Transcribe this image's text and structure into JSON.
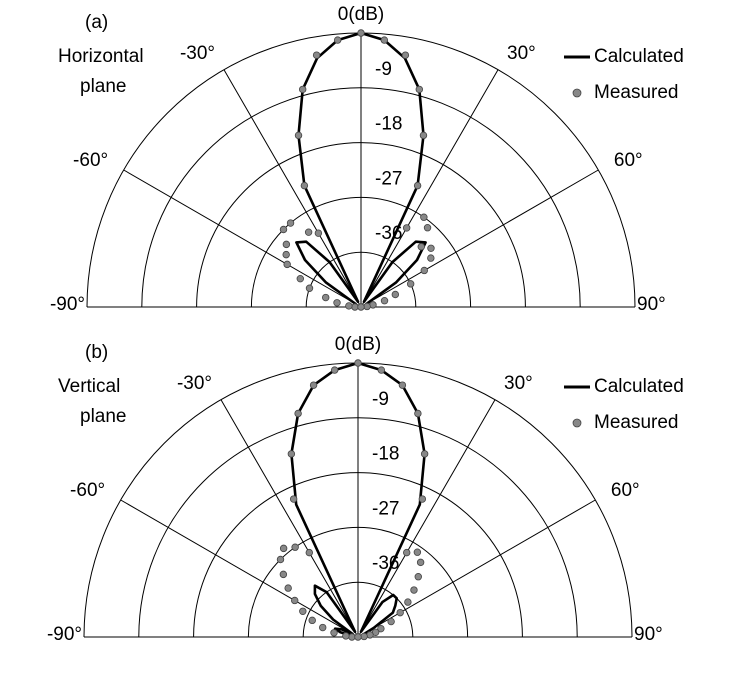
{
  "chart_data": [
    {
      "type": "polar",
      "panel_label": "(a)",
      "subtitle_lines": [
        "Horizontal",
        "plane"
      ],
      "x": [
        -90,
        -85,
        -80,
        -75,
        -70,
        -65,
        -60,
        -55,
        -50,
        -45,
        -40,
        -35,
        -30,
        -25,
        -20,
        -15,
        -10,
        -5,
        0,
        5,
        10,
        15,
        20,
        25,
        30,
        35,
        40,
        45,
        50,
        55,
        60,
        65,
        70,
        75,
        80,
        85,
        90
      ],
      "xticks": [
        {
          "value": -90,
          "label": "-90°"
        },
        {
          "value": -60,
          "label": "-60°"
        },
        {
          "value": -30,
          "label": "-30°"
        },
        {
          "value": 30,
          "label": "30°"
        },
        {
          "value": 60,
          "label": "60°"
        },
        {
          "value": 90,
          "label": "90°"
        }
      ],
      "rlim": [
        -45,
        0
      ],
      "rticks": [
        {
          "value": 0,
          "label": "0(dB)"
        },
        -9,
        -18,
        -27,
        -36
      ],
      "legend": "upper right",
      "series": [
        {
          "name": "Calculated",
          "color": "#000000",
          "style": "line",
          "values": [
            -45,
            -45,
            -45,
            -45,
            -44,
            -44,
            -44,
            -38,
            -33,
            -30,
            -31,
            -36,
            -44,
            -23,
            -15,
            -8,
            -3.5,
            -1,
            0,
            -1,
            -3.5,
            -8,
            -15,
            -23,
            -44,
            -36,
            -31,
            -30,
            -33,
            -38,
            -44,
            -44,
            -44,
            -45,
            -45,
            -45,
            -45
          ]
        },
        {
          "name": "Measured",
          "color": "#888888",
          "style": "marker",
          "values": [
            -44,
            -43,
            -41,
            -39,
            -36,
            -34,
            -31,
            -30,
            -29,
            -27,
            -27,
            -30,
            -31,
            -23,
            -15,
            -8,
            -3,
            -1,
            0,
            -1,
            -3,
            -8,
            -15,
            -23,
            -30,
            -27,
            -28,
            -31,
            -30,
            -31,
            -33,
            -36,
            -39,
            -41,
            -43,
            -44,
            -45
          ]
        }
      ]
    },
    {
      "type": "polar",
      "panel_label": "(b)",
      "subtitle_lines": [
        "Vertical",
        "plane"
      ],
      "x": [
        -90,
        -85,
        -80,
        -75,
        -70,
        -65,
        -60,
        -55,
        -50,
        -45,
        -40,
        -35,
        -30,
        -25,
        -20,
        -15,
        -10,
        -5,
        0,
        5,
        10,
        15,
        20,
        25,
        30,
        35,
        40,
        45,
        50,
        55,
        60,
        65,
        70,
        75,
        80,
        85,
        90
      ],
      "xticks": [
        {
          "value": -90,
          "label": "-90°"
        },
        {
          "value": -60,
          "label": "-60°"
        },
        {
          "value": -30,
          "label": "-30°"
        },
        {
          "value": 30,
          "label": "30°"
        },
        {
          "value": 60,
          "label": "60°"
        },
        {
          "value": 90,
          "label": "90°"
        }
      ],
      "rlim": [
        -45,
        0
      ],
      "rticks": [
        {
          "value": 0,
          "label": "0(dB)"
        },
        -9,
        -18,
        -27,
        -36
      ],
      "legend": "upper right",
      "series": [
        {
          "name": "Calculated",
          "color": "#000000",
          "style": "line",
          "values": [
            -45,
            -45,
            -44,
            -42,
            -41,
            -42,
            -44,
            -40,
            -37,
            -35,
            -34,
            -36,
            -44,
            -21,
            -13,
            -7,
            -3,
            -1,
            0,
            -1,
            -3,
            -7,
            -13,
            -21,
            -44,
            -38,
            -36,
            -36,
            -37,
            -38,
            -42,
            -44,
            -44,
            -45,
            -45,
            -45,
            -45
          ]
        },
        {
          "name": "Measured",
          "color": "#888888",
          "style": "marker",
          "values": [
            -44,
            -43,
            -41,
            -39,
            -37,
            -35,
            -33,
            -31,
            -29,
            -27,
            -26,
            -27,
            -29,
            -20,
            -13,
            -7,
            -3,
            -1,
            0,
            -1,
            -3,
            -7,
            -13,
            -20,
            -29,
            -28,
            -29,
            -31,
            -33,
            -35,
            -37,
            -39,
            -41,
            -42,
            -43,
            -44,
            -45
          ]
        }
      ]
    }
  ]
}
